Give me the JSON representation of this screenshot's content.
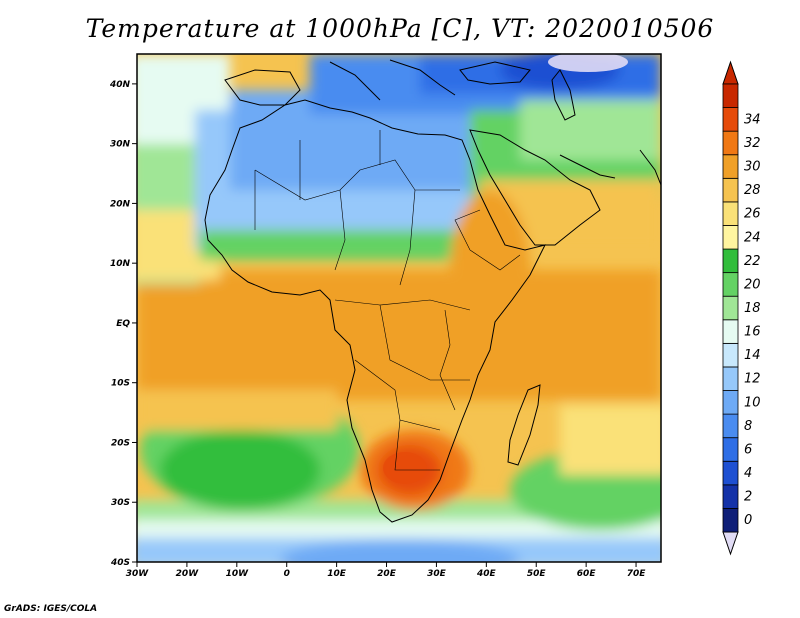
{
  "title": "Temperature at 1000hPa [C], VT: 2020010506",
  "footer": "GrADS: IGES/COLA",
  "map": {
    "lon_range": [
      -30,
      75
    ],
    "lat_range": [
      -40,
      45
    ],
    "lon_ticks": [
      {
        "value": -30,
        "label": "30W"
      },
      {
        "value": -20,
        "label": "20W"
      },
      {
        "value": -10,
        "label": "10W"
      },
      {
        "value": 0,
        "label": "0"
      },
      {
        "value": 10,
        "label": "10E"
      },
      {
        "value": 20,
        "label": "20E"
      },
      {
        "value": 30,
        "label": "30E"
      },
      {
        "value": 40,
        "label": "40E"
      },
      {
        "value": 50,
        "label": "50E"
      },
      {
        "value": 60,
        "label": "60E"
      },
      {
        "value": 70,
        "label": "70E"
      }
    ],
    "lat_ticks": [
      {
        "value": 40,
        "label": "40N"
      },
      {
        "value": 30,
        "label": "30N"
      },
      {
        "value": 20,
        "label": "20N"
      },
      {
        "value": 10,
        "label": "10N"
      },
      {
        "value": 0,
        "label": "EQ"
      },
      {
        "value": -10,
        "label": "10S"
      },
      {
        "value": -20,
        "label": "20S"
      },
      {
        "value": -30,
        "label": "30S"
      },
      {
        "value": -40,
        "label": "40S"
      }
    ]
  },
  "colorbar": {
    "levels": [
      0,
      2,
      4,
      6,
      8,
      10,
      12,
      14,
      16,
      18,
      20,
      22,
      24,
      26,
      28,
      30,
      32,
      34
    ],
    "colors": [
      "#0f1f78",
      "#1432a8",
      "#1e50d2",
      "#2e6ee6",
      "#4a8cf0",
      "#6eaaf5",
      "#96c8fa",
      "#c8e8fc",
      "#e6fbf2",
      "#a0e696",
      "#64d264",
      "#32be3c",
      "#fff5a0",
      "#fae178",
      "#f5c350",
      "#f0a028",
      "#f07814",
      "#e64b0a",
      "#c82800"
    ],
    "under_color": "#e1dcf5"
  }
}
